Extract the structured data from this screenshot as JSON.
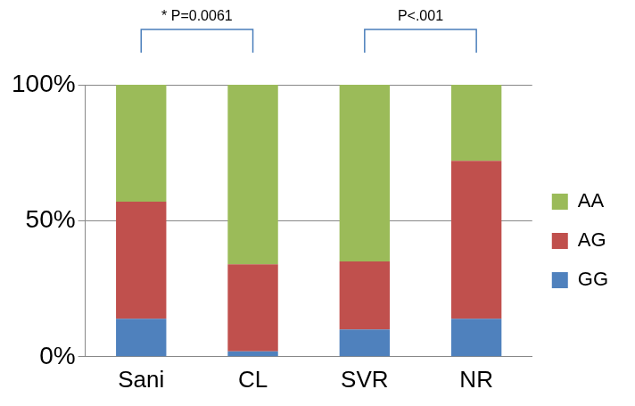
{
  "chart_data": {
    "type": "bar",
    "stacked": true,
    "categories": [
      "Sani",
      "CL",
      "SVR",
      "NR"
    ],
    "series": [
      {
        "name": "GG",
        "color": "#4f81bd",
        "values": [
          14,
          2,
          10,
          14
        ]
      },
      {
        "name": "AG",
        "color": "#c0504d",
        "values": [
          43,
          32,
          25,
          58
        ]
      },
      {
        "name": "AA",
        "color": "#9bbb59",
        "values": [
          43,
          66,
          65,
          28
        ]
      }
    ],
    "ylim": [
      0,
      100
    ],
    "yticks": [
      {
        "value": 0,
        "label": "0%"
      },
      {
        "value": 50,
        "label": "50%"
      },
      {
        "value": 100,
        "label": "100%"
      }
    ],
    "grid": true,
    "legend": "right",
    "annotations": [
      {
        "text": "* P=0.0061",
        "from": "Sani",
        "to": "CL"
      },
      {
        "text": "P<.001",
        "from": "SVR",
        "to": "NR"
      }
    ]
  }
}
